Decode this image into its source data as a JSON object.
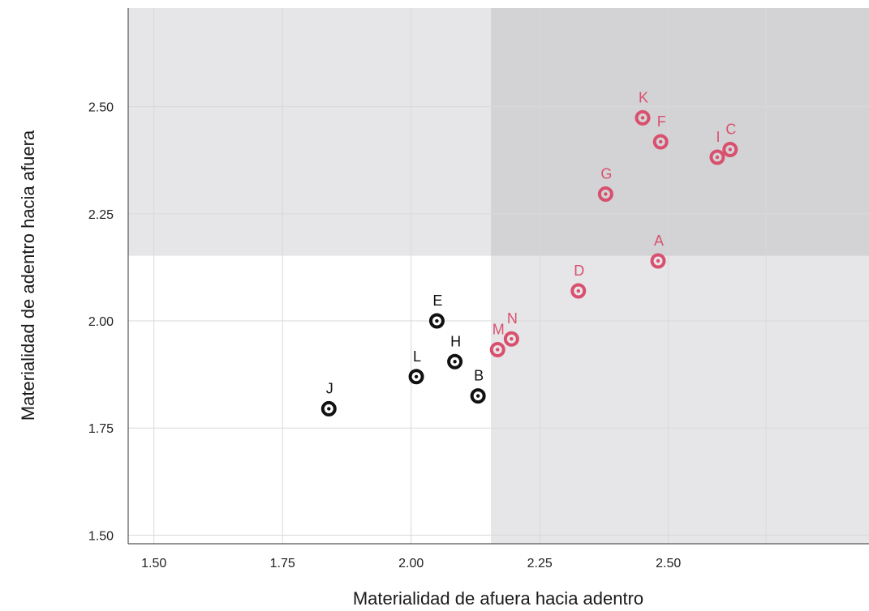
{
  "chart_data": {
    "type": "scatter",
    "xlabel": "Materialidad de afuera hacia adentro",
    "ylabel": "Materialidad de adentro hacia afuera",
    "xlim": [
      1.45,
      2.89
    ],
    "ylim": [
      1.48,
      2.73
    ],
    "x_ticks": [
      "1.50",
      "1.75",
      "2.00",
      "2.25",
      "2.50"
    ],
    "y_ticks": [
      "1.50",
      "1.75",
      "2.00",
      "2.25",
      "2.50"
    ],
    "x_tick_values": [
      1.5,
      1.75,
      2.0,
      2.25,
      2.5
    ],
    "y_tick_values": [
      1.5,
      1.75,
      2.0,
      2.25,
      2.5
    ],
    "extra_x_gridlines": [
      2.69
    ],
    "grid": true,
    "threshold_x": 2.155,
    "threshold_y": 2.152,
    "colors": {
      "high": "#d9506e",
      "low": "#111111",
      "band": "#e6e6e8",
      "overlap": "#d3d3d5"
    },
    "points": [
      {
        "label": "A",
        "x": 2.48,
        "y": 2.14,
        "group": "high"
      },
      {
        "label": "B",
        "x": 2.13,
        "y": 1.825,
        "group": "low"
      },
      {
        "label": "C",
        "x": 2.62,
        "y": 2.4,
        "group": "high"
      },
      {
        "label": "D",
        "x": 2.325,
        "y": 2.07,
        "group": "high"
      },
      {
        "label": "E",
        "x": 2.05,
        "y": 2.0,
        "group": "low"
      },
      {
        "label": "F",
        "x": 2.485,
        "y": 2.418,
        "group": "high"
      },
      {
        "label": "G",
        "x": 2.378,
        "y": 2.296,
        "group": "high"
      },
      {
        "label": "H",
        "x": 2.085,
        "y": 1.905,
        "group": "low"
      },
      {
        "label": "I",
        "x": 2.595,
        "y": 2.382,
        "group": "high"
      },
      {
        "label": "J",
        "x": 1.84,
        "y": 1.795,
        "group": "low"
      },
      {
        "label": "K",
        "x": 2.45,
        "y": 2.474,
        "group": "high"
      },
      {
        "label": "L",
        "x": 2.01,
        "y": 1.87,
        "group": "low"
      },
      {
        "label": "M",
        "x": 2.168,
        "y": 1.933,
        "group": "high"
      },
      {
        "label": "N",
        "x": 2.195,
        "y": 1.958,
        "group": "high"
      }
    ]
  }
}
